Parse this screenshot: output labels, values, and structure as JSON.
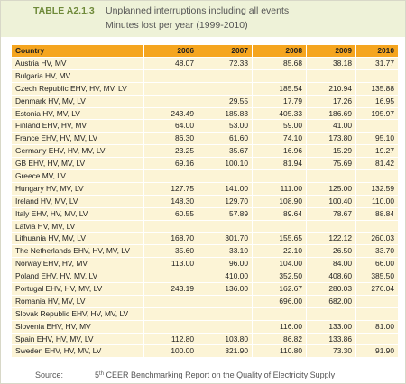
{
  "header": {
    "label": "TABLE A2.1.3",
    "title": "Unplanned interruptions including all events",
    "subtitle": "Minutes lost per year (1999-2010)"
  },
  "table": {
    "columns": [
      "Country",
      "2006",
      "2007",
      "2008",
      "2009",
      "2010"
    ],
    "rows": [
      [
        "Austria HV, MV",
        "48.07",
        "72.33",
        "85.68",
        "38.18",
        "31.77"
      ],
      [
        "Bulgaria HV, MV",
        null,
        null,
        null,
        null,
        null
      ],
      [
        "Czech Republic EHV, HV, MV, LV",
        null,
        null,
        "185.54",
        "210.94",
        "135.88"
      ],
      [
        "Denmark HV, MV, LV",
        null,
        "29.55",
        "17.79",
        "17.26",
        "16.95"
      ],
      [
        "Estonia HV, MV, LV",
        "243.49",
        "185.83",
        "405.33",
        "186.69",
        "195.97"
      ],
      [
        "Finland  EHV, HV, MV",
        "64.00",
        "53.00",
        "59.00",
        "41.00",
        null
      ],
      [
        "France EHV, HV, MV, LV",
        "86.30",
        "61.60",
        "74.10",
        "173.80",
        "95.10"
      ],
      [
        "Germany EHV, HV, MV, LV",
        "23.25",
        "35.67",
        "16.96",
        "15.29",
        "19.27"
      ],
      [
        "GB EHV, HV, MV, LV",
        "69.16",
        "100.10",
        "81.94",
        "75.69",
        "81.42"
      ],
      [
        "Greece MV, LV",
        null,
        null,
        null,
        null,
        null
      ],
      [
        "Hungary HV, MV, LV",
        "127.75",
        "141.00",
        "111.00",
        "125.00",
        "132.59"
      ],
      [
        "Ireland HV, MV, LV",
        "148.30",
        "129.70",
        "108.90",
        "100.40",
        "110.00"
      ],
      [
        "Italy  EHV, HV, MV, LV",
        "60.55",
        "57.89",
        "89.64",
        "78.67",
        "88.84"
      ],
      [
        "Latvia HV, MV, LV",
        null,
        null,
        null,
        null,
        null
      ],
      [
        "Lithuania HV, MV, LV",
        "168.70",
        "301.70",
        "155.65",
        "122.12",
        "260.03"
      ],
      [
        "The Netherlands EHV, HV, MV, LV",
        "35.60",
        "33.10",
        "22.10",
        "26.50",
        "33.70"
      ],
      [
        "Norway EHV, HV, MV",
        "113.00",
        "96.00",
        "104.00",
        "84.00",
        "66.00"
      ],
      [
        "Poland EHV, HV, MV, LV",
        null,
        "410.00",
        "352.50",
        "408.60",
        "385.50"
      ],
      [
        "Portugal EHV, HV, MV, LV",
        "243.19",
        "136.00",
        "162.67",
        "280.03",
        "276.04"
      ],
      [
        "Romania HV, MV, LV",
        null,
        null,
        "696.00",
        "682.00",
        null
      ],
      [
        "Slovak Republic EHV, HV, MV, LV",
        null,
        null,
        null,
        null,
        null
      ],
      [
        "Slovenia EHV, HV, MV",
        null,
        null,
        "116.00",
        "133.00",
        "81.00"
      ],
      [
        "Spain EHV, HV, MV, LV",
        "112.80",
        "103.80",
        "86.82",
        "133.86",
        null
      ],
      [
        "Sweden EHV, HV, MV, LV",
        "100.00",
        "321.90",
        "110.80",
        "73.30",
        "91.90"
      ]
    ]
  },
  "footer": {
    "source_label": "Source:",
    "edition": "5",
    "edition_suffix": "th",
    "report": " CEER Benchmarking Report on the Quality of Electricity Supply"
  }
}
